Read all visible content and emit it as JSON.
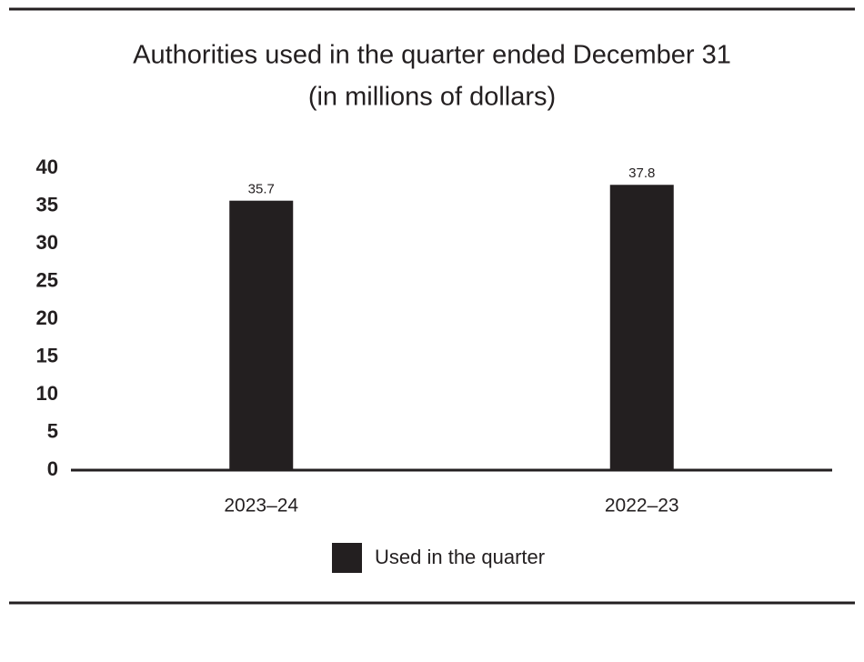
{
  "chart_data": {
    "type": "bar",
    "title": "Authorities used in the quarter ended December 31",
    "subtitle": "(in millions of dollars)",
    "categories": [
      "2023–24",
      "2022–23"
    ],
    "series": [
      {
        "name": "Used in the quarter",
        "color": "#231f20",
        "values": [
          35.7,
          37.8
        ]
      }
    ],
    "ylim": [
      0,
      40
    ],
    "yticks": [
      0,
      5,
      10,
      15,
      20,
      25,
      30,
      35,
      40
    ],
    "grid": false,
    "legend": "bottom"
  }
}
